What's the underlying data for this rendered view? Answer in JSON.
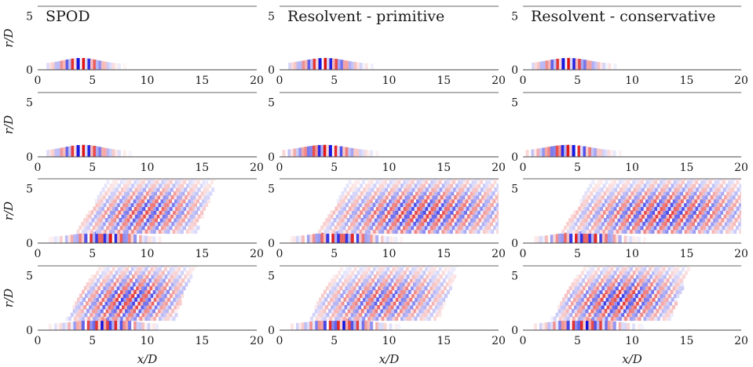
{
  "chart_data": {
    "type": "heatmap",
    "description_mode": "grid of 12 contour panels (4 rows x 3 columns) of a real-valued mode field",
    "columns": [
      {
        "title": "SPOD"
      },
      {
        "title": "Resolvent - primitive"
      },
      {
        "title": "Resolvent - conservative"
      }
    ],
    "rows": 4,
    "xlabel": "x/D",
    "ylabel": "r/D",
    "xlim": [
      0,
      20
    ],
    "ylim": [
      0,
      5
    ],
    "xticks": [
      "0",
      "5",
      "10",
      "15",
      "20"
    ],
    "yticks": [
      "0",
      "5"
    ],
    "colormap": {
      "negative": "#1010e0",
      "zero": "#ffffff",
      "positive": "#e01010"
    },
    "panels": [
      {
        "row": 0,
        "col": 0,
        "wavelength": 0.95,
        "near_amp": 1.0,
        "near_center_x": 3.8,
        "near_extent_x": [
          0.8,
          8.0
        ],
        "radiation_amp": 0.0
      },
      {
        "row": 0,
        "col": 1,
        "wavelength": 0.95,
        "near_amp": 1.0,
        "near_center_x": 4.0,
        "near_extent_x": [
          0.8,
          9.0
        ],
        "radiation_amp": 0.0
      },
      {
        "row": 0,
        "col": 2,
        "wavelength": 0.95,
        "near_amp": 1.0,
        "near_center_x": 4.0,
        "near_extent_x": [
          0.8,
          9.0
        ],
        "radiation_amp": 0.0
      },
      {
        "row": 1,
        "col": 0,
        "wavelength": 0.95,
        "near_amp": 1.0,
        "near_center_x": 4.0,
        "near_extent_x": [
          0.8,
          8.5
        ],
        "radiation_amp": 0.0
      },
      {
        "row": 1,
        "col": 1,
        "wavelength": 0.95,
        "near_amp": 1.0,
        "near_center_x": 4.0,
        "near_extent_x": [
          0.0,
          9.0
        ],
        "radiation_amp": 0.0
      },
      {
        "row": 1,
        "col": 2,
        "wavelength": 0.95,
        "near_amp": 1.0,
        "near_center_x": 4.0,
        "near_extent_x": [
          0.0,
          9.0
        ],
        "radiation_amp": 0.0
      },
      {
        "row": 2,
        "col": 0,
        "wavelength": 0.9,
        "near_amp": 1.0,
        "near_center_x": 6.0,
        "near_extent_x": [
          1.0,
          11.0
        ],
        "radiation_amp": 0.75,
        "radiation_extent_x": [
          3.0,
          14.0
        ]
      },
      {
        "row": 2,
        "col": 1,
        "wavelength": 0.9,
        "near_amp": 1.0,
        "near_center_x": 5.5,
        "near_extent_x": [
          1.0,
          11.0
        ],
        "radiation_amp": 0.8,
        "radiation_extent_x": [
          3.0,
          20.0
        ]
      },
      {
        "row": 2,
        "col": 2,
        "wavelength": 0.9,
        "near_amp": 1.0,
        "near_center_x": 5.5,
        "near_extent_x": [
          1.0,
          11.0
        ],
        "radiation_amp": 0.8,
        "radiation_extent_x": [
          3.0,
          20.0
        ]
      },
      {
        "row": 3,
        "col": 0,
        "wavelength": 0.85,
        "near_amp": 1.0,
        "near_center_x": 6.0,
        "near_extent_x": [
          1.0,
          11.0
        ],
        "radiation_amp": 0.85,
        "radiation_extent_x": [
          2.0,
          12.0
        ]
      },
      {
        "row": 3,
        "col": 1,
        "wavelength": 0.85,
        "near_amp": 1.0,
        "near_center_x": 5.5,
        "near_extent_x": [
          1.0,
          11.0
        ],
        "radiation_amp": 0.7,
        "radiation_extent_x": [
          2.0,
          14.0
        ]
      },
      {
        "row": 3,
        "col": 2,
        "wavelength": 0.85,
        "near_amp": 1.0,
        "near_center_x": 5.5,
        "near_extent_x": [
          1.0,
          11.0
        ],
        "radiation_amp": 0.85,
        "radiation_extent_x": [
          2.0,
          13.0
        ]
      }
    ]
  }
}
